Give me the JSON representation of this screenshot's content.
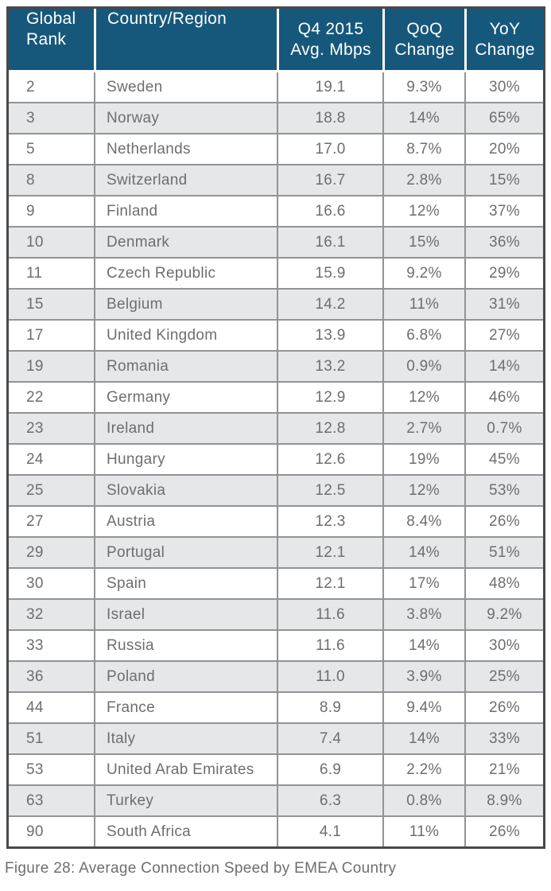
{
  "colors": {
    "header_bg": "#16587B",
    "outer_border": "#48494B",
    "grid_border": "#919396",
    "alt_row": "#E6E7E8",
    "data_text": "#6D6E71",
    "header_text": "#FFFFFF"
  },
  "table": {
    "columns": [
      {
        "key": "rank",
        "label": "Global\nRank"
      },
      {
        "key": "country",
        "label": "Country/Region"
      },
      {
        "key": "mbps",
        "label": "Q4 2015\nAvg. Mbps"
      },
      {
        "key": "qoq",
        "label": "QoQ\nChange"
      },
      {
        "key": "yoy",
        "label": "YoY\nChange"
      }
    ],
    "rows": [
      [
        "2",
        "Sweden",
        "19.1",
        "9.3%",
        "30%"
      ],
      [
        "3",
        "Norway",
        "18.8",
        "14%",
        "65%"
      ],
      [
        "5",
        "Netherlands",
        "17.0",
        "8.7%",
        "20%"
      ],
      [
        "8",
        "Switzerland",
        "16.7",
        "2.8%",
        "15%"
      ],
      [
        "9",
        "Finland",
        "16.6",
        "12%",
        "37%"
      ],
      [
        "10",
        "Denmark",
        "16.1",
        "15%",
        "36%"
      ],
      [
        "11",
        "Czech Republic",
        "15.9",
        "9.2%",
        "29%"
      ],
      [
        "15",
        "Belgium",
        "14.2",
        "11%",
        "31%"
      ],
      [
        "17",
        "United Kingdom",
        "13.9",
        "6.8%",
        "27%"
      ],
      [
        "19",
        "Romania",
        "13.2",
        "0.9%",
        "14%"
      ],
      [
        "22",
        "Germany",
        "12.9",
        "12%",
        "46%"
      ],
      [
        "23",
        "Ireland",
        "12.8",
        "2.7%",
        "0.7%"
      ],
      [
        "24",
        "Hungary",
        "12.6",
        "19%",
        "45%"
      ],
      [
        "25",
        "Slovakia",
        "12.5",
        "12%",
        "53%"
      ],
      [
        "27",
        "Austria",
        "12.3",
        "8.4%",
        "26%"
      ],
      [
        "29",
        "Portugal",
        "12.1",
        "14%",
        "51%"
      ],
      [
        "30",
        "Spain",
        "12.1",
        "17%",
        "48%"
      ],
      [
        "32",
        "Israel",
        "11.6",
        "3.8%",
        "9.2%"
      ],
      [
        "33",
        "Russia",
        "11.6",
        "14%",
        "30%"
      ],
      [
        "36",
        "Poland",
        "11.0",
        "3.9%",
        "25%"
      ],
      [
        "44",
        "France",
        "8.9",
        "9.4%",
        "26%"
      ],
      [
        "51",
        "Italy",
        "7.4",
        "14%",
        "33%"
      ],
      [
        "53",
        "United Arab Emirates",
        "6.9",
        "2.2%",
        "21%"
      ],
      [
        "63",
        "Turkey",
        "6.3",
        "0.8%",
        "8.9%"
      ],
      [
        "90",
        "South Africa",
        "4.1",
        "11%",
        "26%"
      ]
    ],
    "cell_names": [
      "rank-cell",
      "country-cell",
      "mbps-cell",
      "qoq-cell",
      "yoy-cell"
    ]
  },
  "caption": "Figure 28: Average Connection Speed by EMEA Country"
}
